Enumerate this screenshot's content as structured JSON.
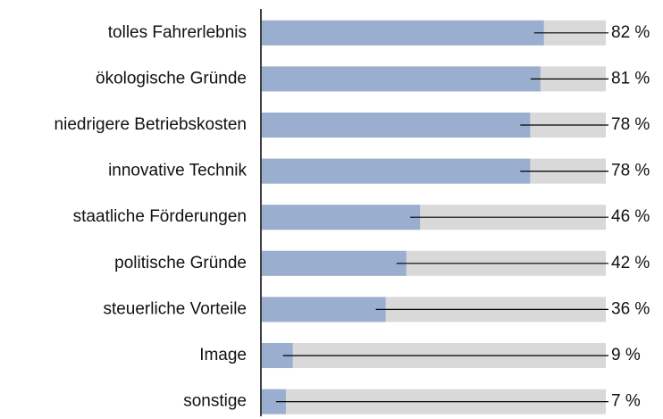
{
  "chart_data": {
    "type": "bar",
    "orientation": "horizontal",
    "categories": [
      "tolles Fahrerlebnis",
      "ökologische Gründe",
      "niedrigere Betriebskosten",
      "innovative Technik",
      "staatliche Förderungen",
      "politische Gründe",
      "steuerliche Vorteile",
      "Image",
      "sonstige"
    ],
    "values": [
      82,
      81,
      78,
      78,
      46,
      42,
      36,
      9,
      7
    ],
    "value_labels": [
      "82 %",
      "81 %",
      "78 %",
      "78 %",
      "46 %",
      "42 %",
      "36 %",
      "9 %",
      "7 %"
    ],
    "color": "#9aaed0",
    "background_color": "#d9d9d9",
    "xlim": [
      0,
      100
    ]
  }
}
